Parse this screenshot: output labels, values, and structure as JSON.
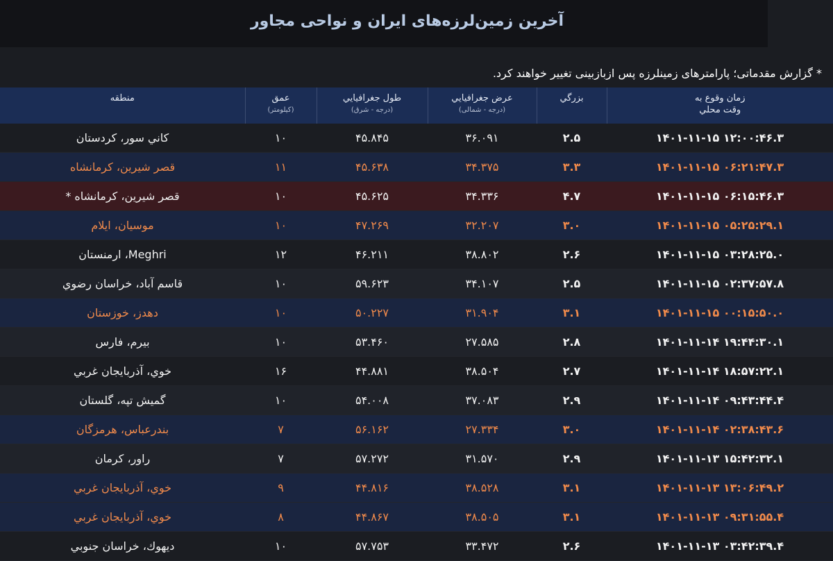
{
  "page": {
    "title": "آخرین زمین‌لرزه‌های ایران و نواحی مجاور",
    "notice": "* گزارش مقدماتی؛ پارامترهای زمینلرزه پس ازبازبینی تغییر خواهند کرد."
  },
  "colors": {
    "background": "#1b1d22",
    "header": "#1b2d55",
    "highlight_text": "#f08a4b",
    "highlight_row": "#1a2540",
    "alert_row": "#3b1a1f"
  },
  "table": {
    "headers": {
      "region": "منطقه",
      "depth": "عمق",
      "depth_unit": "(کیلومتر)",
      "lon": "طول جغرافيايي",
      "lon_unit": "(درجه - شرق)",
      "lat": "عرض جغرافيايي",
      "lat_unit": "(درجه - شمالی)",
      "mag": "بزرگي",
      "time": "زمان وقوع به",
      "time_unit": "وقت محلي"
    },
    "rows": [
      {
        "time": "۱۴۰۱-۱۱-۱۵ ۱۲:۰۰:۴۶.۳",
        "mag": "۲.۵",
        "lat": "۳۶.۰۹۱",
        "lon": "۴۵.۸۴۵",
        "depth": "۱۰",
        "region": "كاني سور، كردستان",
        "style": "normal"
      },
      {
        "time": "۱۴۰۱-۱۱-۱۵ ۰۶:۲۱:۴۷.۳",
        "mag": "۳.۳",
        "lat": "۳۴.۳۷۵",
        "lon": "۴۵.۶۳۸",
        "depth": "۱۱",
        "region": "قصر شيرين، كرمانشاه",
        "style": "orange"
      },
      {
        "time": "۱۴۰۱-۱۱-۱۵ ۰۶:۱۵:۴۶.۳",
        "mag": "۴.۷",
        "lat": "۳۴.۳۳۶",
        "lon": "۴۵.۶۲۵",
        "depth": "۱۰",
        "region": "قصر شيرين، كرمانشاه *",
        "style": "red"
      },
      {
        "time": "۱۴۰۱-۱۱-۱۵ ۰۵:۲۵:۲۹.۱",
        "mag": "۳.۰",
        "lat": "۳۲.۲۰۷",
        "lon": "۴۷.۲۶۹",
        "depth": "۱۰",
        "region": "موسيان، ايلام",
        "style": "orange"
      },
      {
        "time": "۱۴۰۱-۱۱-۱۵ ۰۳:۲۸:۲۵.۰",
        "mag": "۲.۶",
        "lat": "۳۸.۸۰۲",
        "lon": "۴۶.۲۱۱",
        "depth": "۱۲",
        "region": "Meghri، ارمنستان",
        "style": "normal"
      },
      {
        "time": "۱۴۰۱-۱۱-۱۵ ۰۲:۳۷:۵۷.۸",
        "mag": "۲.۵",
        "lat": "۳۴.۱۰۷",
        "lon": "۵۹.۶۲۳",
        "depth": "۱۰",
        "region": "قاسم آباد، خراسان رضوي",
        "style": "normal"
      },
      {
        "time": "۱۴۰۱-۱۱-۱۵ ۰۰:۱۵:۵۰.۰",
        "mag": "۳.۱",
        "lat": "۳۱.۹۰۴",
        "lon": "۵۰.۲۲۷",
        "depth": "۱۰",
        "region": "دهدز، خوزستان",
        "style": "orange"
      },
      {
        "time": "۱۴۰۱-۱۱-۱۴ ۱۹:۴۴:۳۰.۱",
        "mag": "۲.۸",
        "lat": "۲۷.۵۸۵",
        "lon": "۵۳.۴۶۰",
        "depth": "۱۰",
        "region": "بيرم، فارس",
        "style": "normal"
      },
      {
        "time": "۱۴۰۱-۱۱-۱۴ ۱۸:۵۷:۲۲.۱",
        "mag": "۲.۷",
        "lat": "۳۸.۵۰۴",
        "lon": "۴۴.۸۸۱",
        "depth": "۱۶",
        "region": "خوي، آذربايجان غربي",
        "style": "normal"
      },
      {
        "time": "۱۴۰۱-۱۱-۱۴ ۰۹:۴۳:۴۴.۴",
        "mag": "۲.۹",
        "lat": "۳۷.۰۸۳",
        "lon": "۵۴.۰۰۸",
        "depth": "۱۰",
        "region": "گميش تپه، گلستان",
        "style": "normal"
      },
      {
        "time": "۱۴۰۱-۱۱-۱۴ ۰۲:۳۸:۴۳.۶",
        "mag": "۳.۰",
        "lat": "۲۷.۳۳۴",
        "lon": "۵۶.۱۶۲",
        "depth": "۷",
        "region": "بندرعباس، هرمزگان",
        "style": "orange"
      },
      {
        "time": "۱۴۰۱-۱۱-۱۳ ۱۵:۴۲:۳۲.۱",
        "mag": "۲.۹",
        "lat": "۳۱.۵۷۰",
        "lon": "۵۷.۲۷۲",
        "depth": "۷",
        "region": "راور، كرمان",
        "style": "normal"
      },
      {
        "time": "۱۴۰۱-۱۱-۱۳ ۱۳:۰۶:۴۹.۲",
        "mag": "۳.۱",
        "lat": "۳۸.۵۲۸",
        "lon": "۴۴.۸۱۶",
        "depth": "۹",
        "region": "خوي، آذربايجان غربي",
        "style": "orange"
      },
      {
        "time": "۱۴۰۱-۱۱-۱۳ ۰۹:۳۱:۵۵.۴",
        "mag": "۳.۱",
        "lat": "۳۸.۵۰۵",
        "lon": "۴۴.۸۶۷",
        "depth": "۸",
        "region": "خوي، آذربايجان غربي",
        "style": "orange"
      },
      {
        "time": "۱۴۰۱-۱۱-۱۳ ۰۳:۴۲:۳۹.۴",
        "mag": "۲.۶",
        "lat": "۳۳.۴۷۲",
        "lon": "۵۷.۷۵۳",
        "depth": "۱۰",
        "region": "ديهوك، خراسان جنوبي",
        "style": "normal"
      }
    ]
  }
}
